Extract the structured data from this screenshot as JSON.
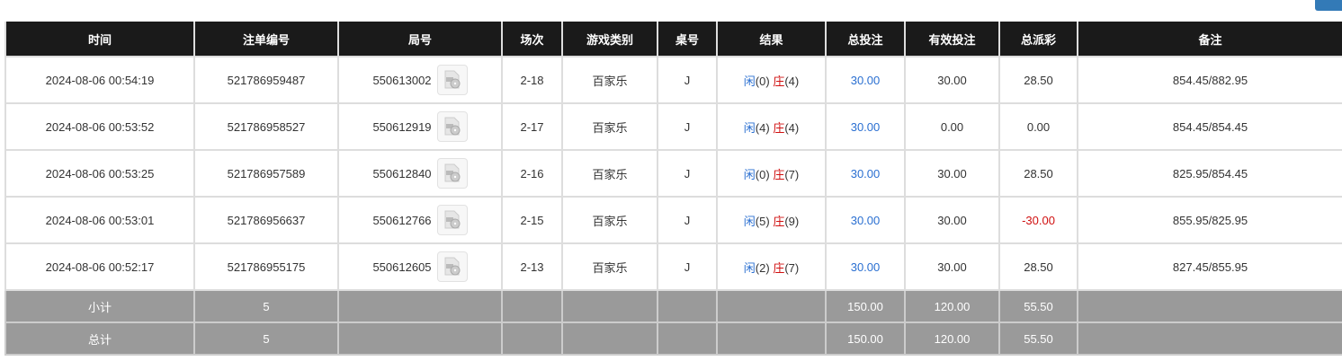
{
  "headers": [
    "时间",
    "注单编号",
    "局号",
    "场次",
    "游戏类别",
    "桌号",
    "结果",
    "总投注",
    "有效投注",
    "总派彩",
    "备注"
  ],
  "rows": [
    {
      "time": "2024-08-06 00:54:19",
      "bet_id": "521786959487",
      "round": "550613002",
      "session": "2-18",
      "game": "百家乐",
      "table": "J",
      "player": "闲",
      "player_score": "(0)",
      "banker": "庄",
      "banker_score": "(4)",
      "total_bet": "30.00",
      "valid_bet": "30.00",
      "payout": "28.50",
      "note": "854.45/882.95"
    },
    {
      "time": "2024-08-06 00:53:52",
      "bet_id": "521786958527",
      "round": "550612919",
      "session": "2-17",
      "game": "百家乐",
      "table": "J",
      "player": "闲",
      "player_score": "(4)",
      "banker": "庄",
      "banker_score": "(4)",
      "total_bet": "30.00",
      "valid_bet": "0.00",
      "payout": "0.00",
      "note": "854.45/854.45"
    },
    {
      "time": "2024-08-06 00:53:25",
      "bet_id": "521786957589",
      "round": "550612840",
      "session": "2-16",
      "game": "百家乐",
      "table": "J",
      "player": "闲",
      "player_score": "(0)",
      "banker": "庄",
      "banker_score": "(7)",
      "total_bet": "30.00",
      "valid_bet": "30.00",
      "payout": "28.50",
      "note": "825.95/854.45"
    },
    {
      "time": "2024-08-06 00:53:01",
      "bet_id": "521786956637",
      "round": "550612766",
      "session": "2-15",
      "game": "百家乐",
      "table": "J",
      "player": "闲",
      "player_score": "(5)",
      "banker": "庄",
      "banker_score": "(9)",
      "total_bet": "30.00",
      "valid_bet": "30.00",
      "payout": "-30.00",
      "payout_negative": true,
      "note": "855.95/825.95"
    },
    {
      "time": "2024-08-06 00:52:17",
      "bet_id": "521786955175",
      "round": "550612605",
      "session": "2-13",
      "game": "百家乐",
      "table": "J",
      "player": "闲",
      "player_score": "(2)",
      "banker": "庄",
      "banker_score": "(7)",
      "total_bet": "30.00",
      "valid_bet": "30.00",
      "payout": "28.50",
      "note": "827.45/855.95"
    }
  ],
  "subtotal": {
    "label": "小计",
    "count": "5",
    "total_bet": "150.00",
    "valid_bet": "120.00",
    "payout": "55.50"
  },
  "total": {
    "label": "总计",
    "count": "5",
    "total_bet": "150.00",
    "valid_bet": "120.00",
    "payout": "55.50"
  },
  "colors": {
    "player": "#2a6fd1",
    "banker": "#d01010",
    "header_bg": "#1a1a1a",
    "summary_bg": "#9a9a9a"
  }
}
